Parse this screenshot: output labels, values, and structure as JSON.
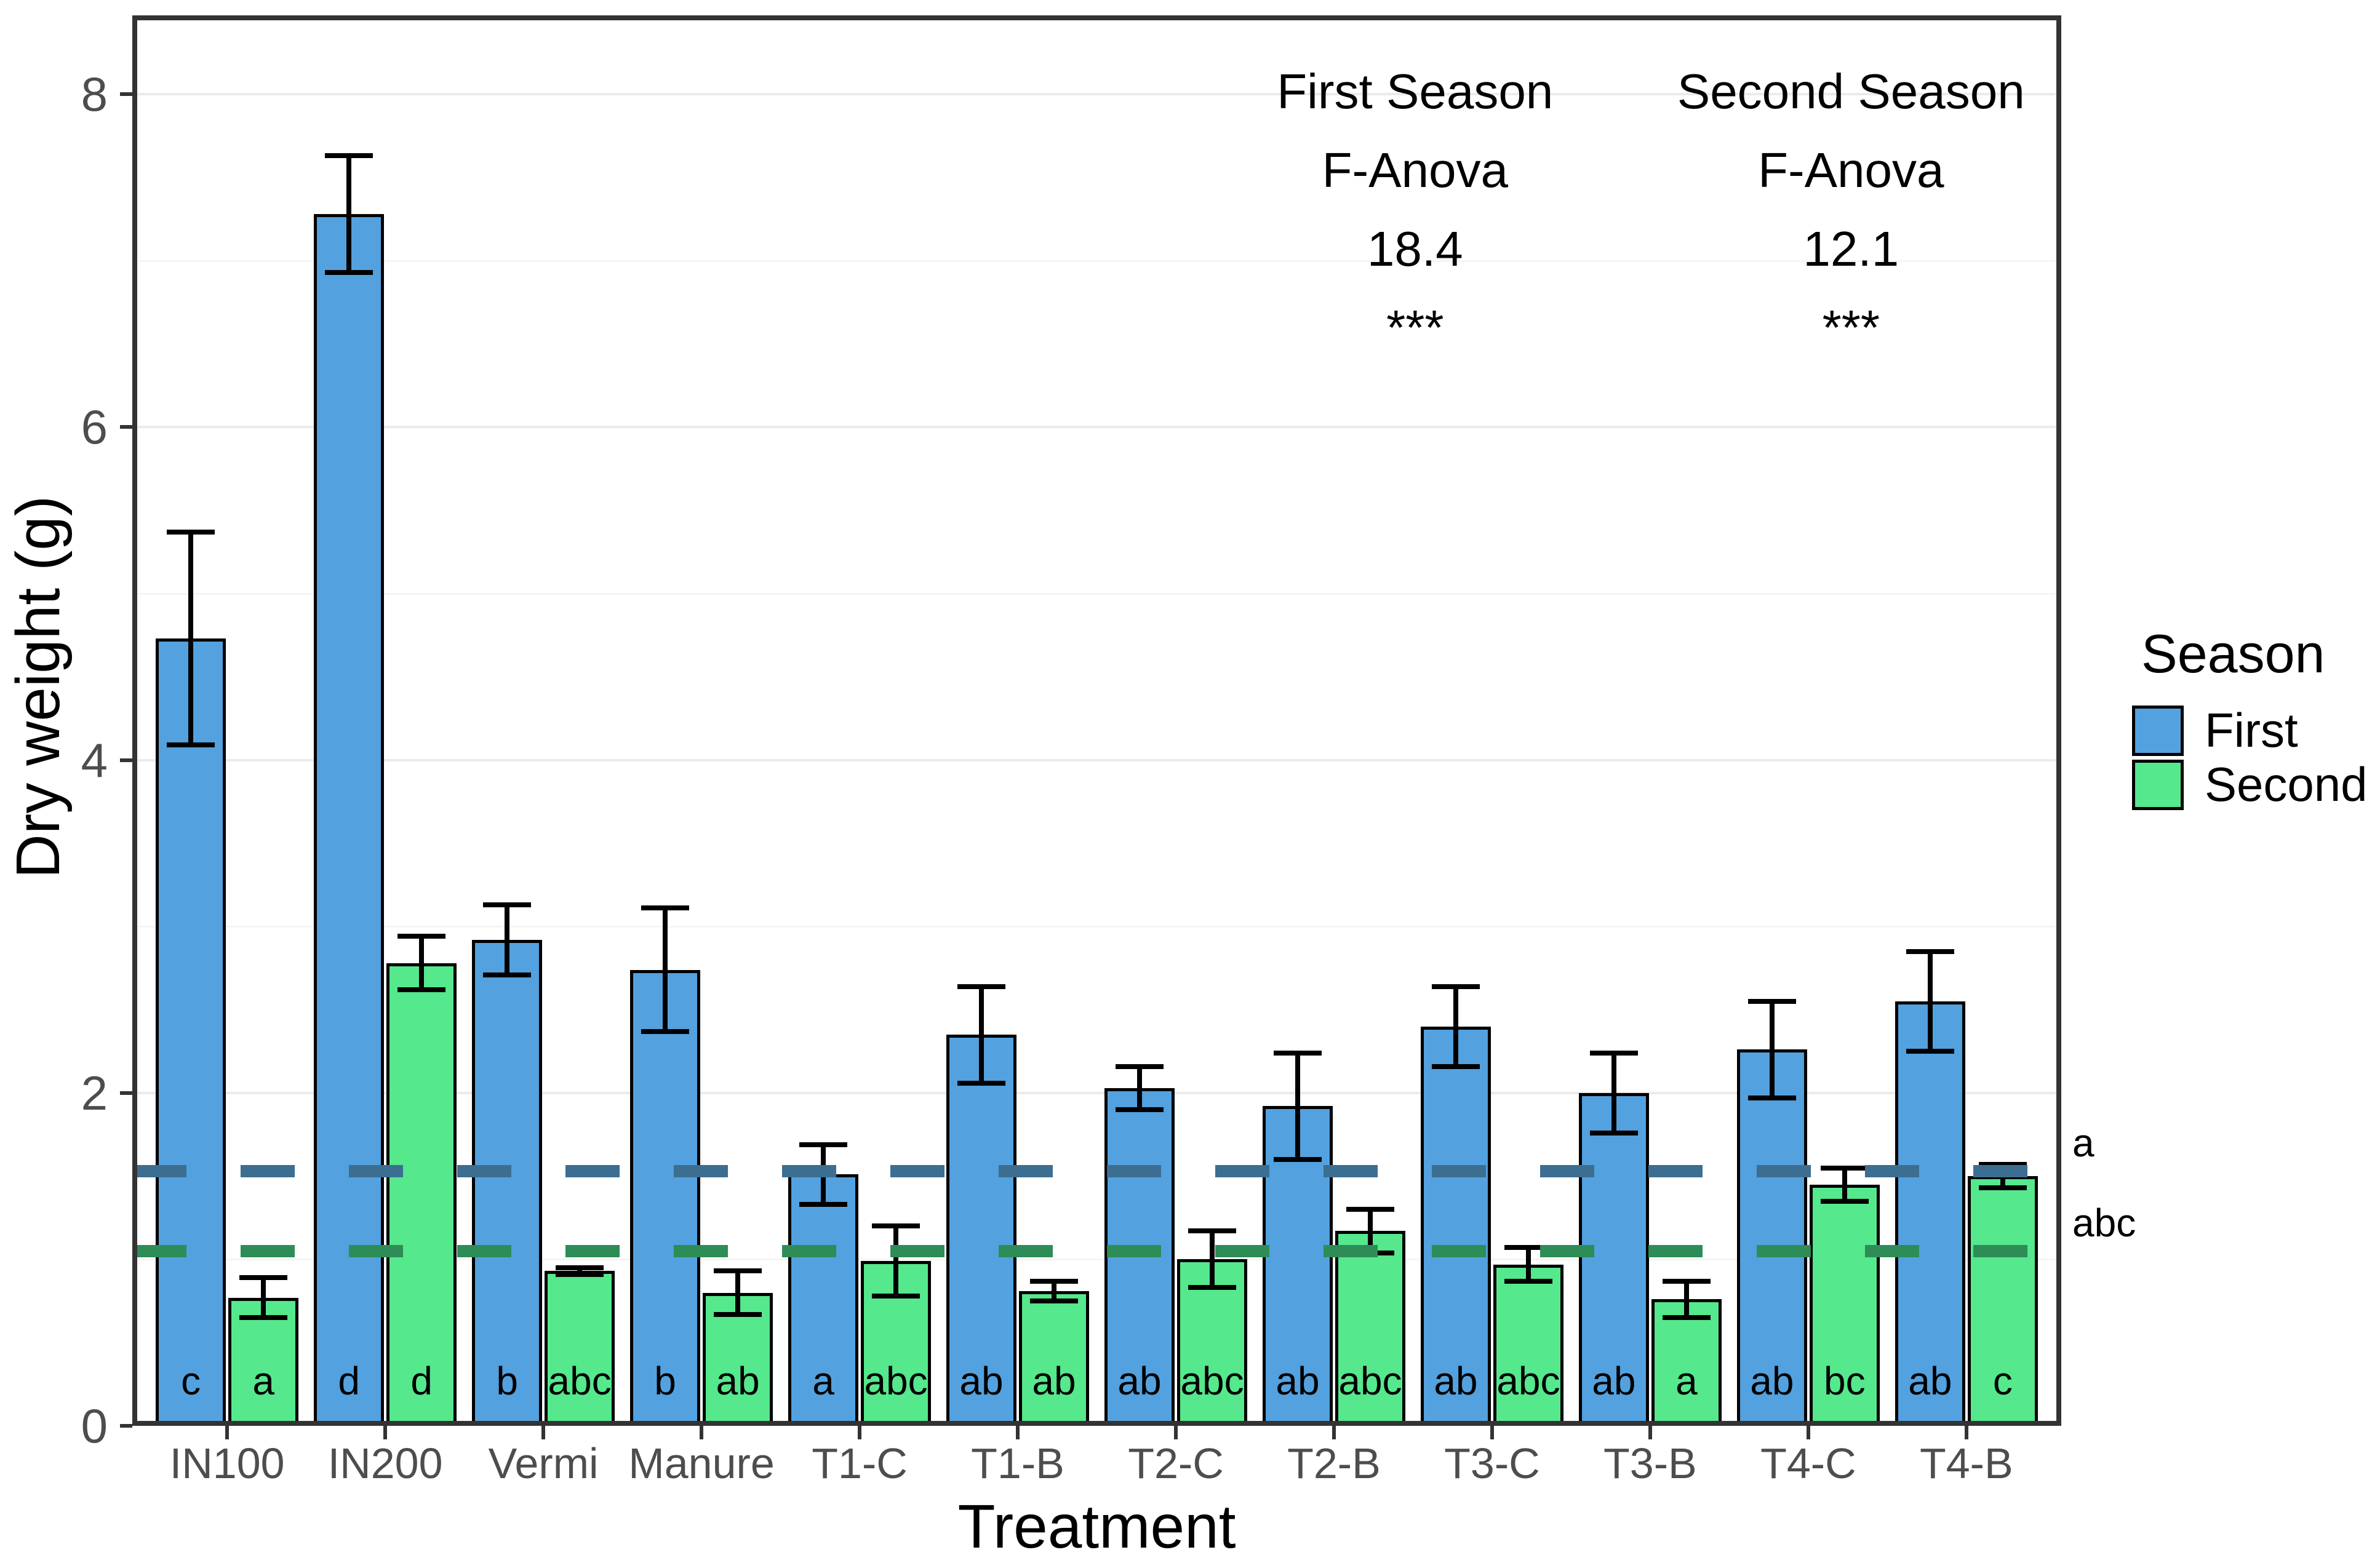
{
  "chart_data": {
    "type": "bar",
    "xlabel": "Treatment",
    "ylabel": "Dry weight (g)",
    "ylim": [
      0,
      8.47
    ],
    "yticks": [
      0,
      2,
      4,
      6,
      8
    ],
    "minor_gridlines": [
      1,
      3,
      5,
      7
    ],
    "grid": "on",
    "legend_position": "right",
    "categories": [
      "IN100",
      "IN200",
      "Vermi",
      "Manure",
      "T1-C",
      "T1-B",
      "T2-C",
      "T2-B",
      "T3-C",
      "T3-B",
      "T4-C",
      "T4-B"
    ],
    "series": [
      {
        "name": "First",
        "color": "#53A1DF",
        "values": [
          4.73,
          7.28,
          2.92,
          2.74,
          1.51,
          2.35,
          2.03,
          1.92,
          2.4,
          2.0,
          2.26,
          2.55
        ],
        "errors": [
          0.64,
          0.35,
          0.21,
          0.37,
          0.18,
          0.29,
          0.13,
          0.32,
          0.24,
          0.24,
          0.29,
          0.3
        ],
        "letters": [
          "c",
          "d",
          "b",
          "b",
          "a",
          "ab",
          "ab",
          "ab",
          "ab",
          "ab",
          "ab",
          "ab"
        ]
      },
      {
        "name": "Second",
        "color": "#55E88D",
        "values": [
          0.77,
          2.78,
          0.93,
          0.8,
          0.99,
          0.81,
          1.0,
          1.17,
          0.97,
          0.76,
          1.45,
          1.5
        ],
        "errors": [
          0.12,
          0.16,
          0.02,
          0.13,
          0.21,
          0.06,
          0.17,
          0.13,
          0.1,
          0.11,
          0.1,
          0.07
        ],
        "letters": [
          "a",
          "d",
          "abc",
          "ab",
          "abc",
          "ab",
          "abc",
          "abc",
          "abc",
          "a",
          "bc",
          "c"
        ]
      }
    ],
    "reference_lines": [
      {
        "series": "First",
        "value": 1.53,
        "color": "#3C6E91",
        "label": "a"
      },
      {
        "series": "Second",
        "value": 1.05,
        "color": "#2E8C57",
        "label": "abc"
      }
    ],
    "annotations": [
      {
        "x_frac": 0.665,
        "lines": [
          "First Season",
          "F-Anova",
          "18.4",
          "***"
        ]
      },
      {
        "x_frac": 0.891,
        "lines": [
          "Second Season",
          "F-Anova",
          "12.1",
          "***"
        ]
      }
    ],
    "legend": {
      "title": "Season",
      "entries": [
        {
          "label": "First",
          "color": "#53A1DF"
        },
        {
          "label": "Second",
          "color": "#55E88D"
        }
      ]
    }
  }
}
